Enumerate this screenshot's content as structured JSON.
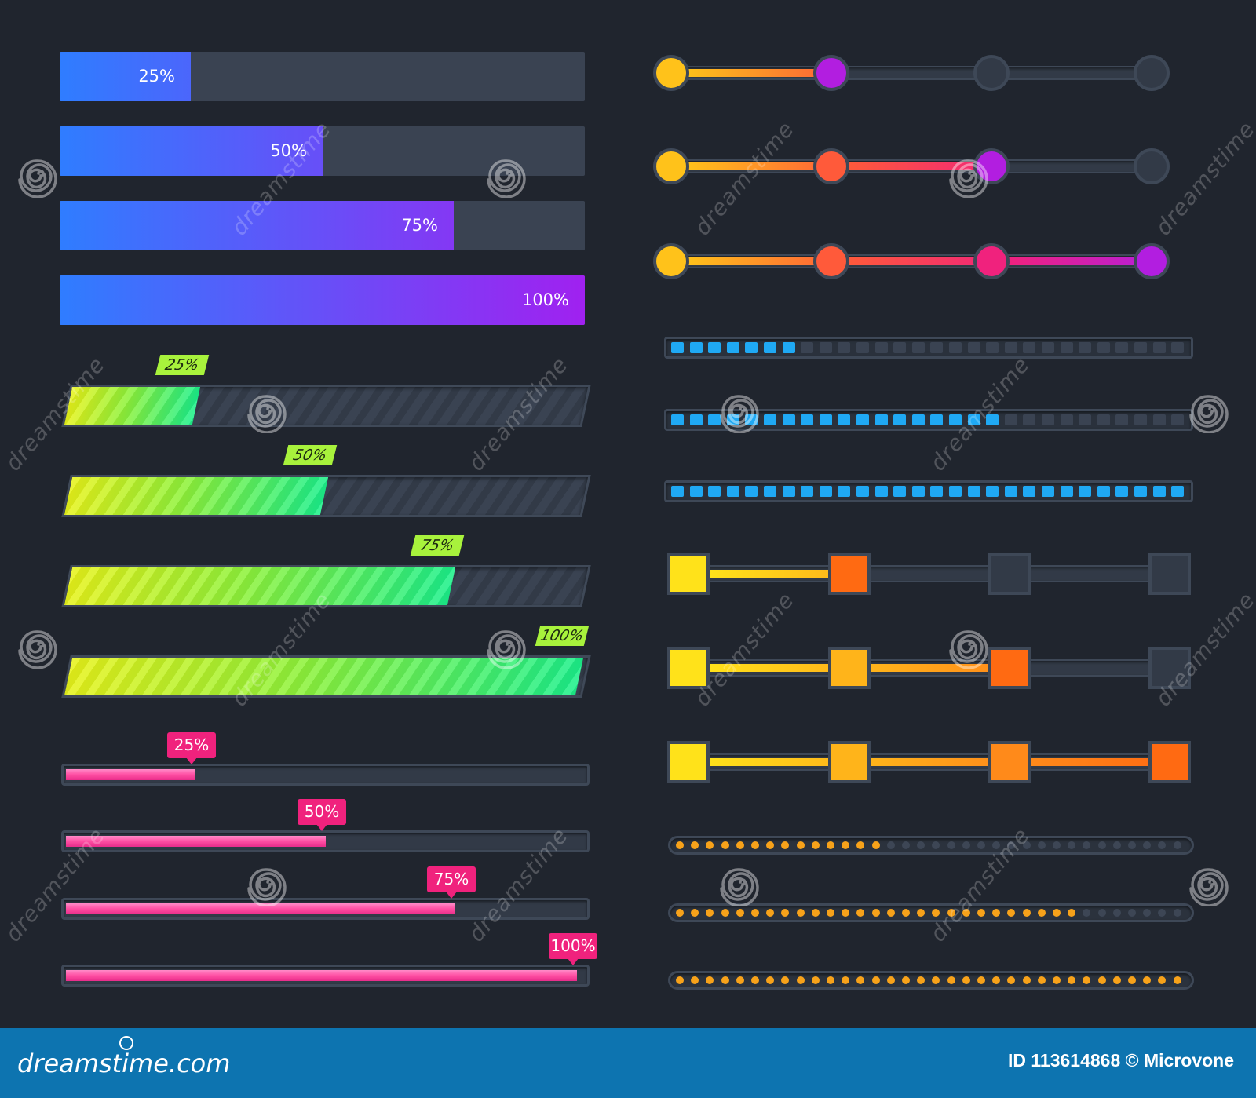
{
  "gradient_bars": {
    "items": [
      {
        "label": "25%",
        "progress": 0.25
      },
      {
        "label": "50%",
        "progress": 0.5
      },
      {
        "label": "75%",
        "progress": 0.75
      },
      {
        "label": "100%",
        "progress": 1.0
      }
    ],
    "colors": {
      "start": "#2f7dff",
      "end": "#a021f0",
      "track": "#3a4352"
    }
  },
  "striped_bars": {
    "items": [
      {
        "label": "25%",
        "progress": 0.25
      },
      {
        "label": "50%",
        "progress": 0.5
      },
      {
        "label": "75%",
        "progress": 0.75
      },
      {
        "label": "100%",
        "progress": 1.0
      }
    ],
    "colors": {
      "start": "#e7f31a",
      "end": "#1cf08a",
      "tag": "#a8f23c"
    }
  },
  "pink_bars": {
    "items": [
      {
        "label": "25%",
        "progress": 0.25
      },
      {
        "label": "50%",
        "progress": 0.5
      },
      {
        "label": "75%",
        "progress": 0.75
      },
      {
        "label": "100%",
        "progress": 1.0
      }
    ],
    "colors": {
      "fill": "#ff4fa3",
      "tag": "#f0227d"
    }
  },
  "circle_steps": {
    "steps_total": 4,
    "items": [
      {
        "completed_steps": 2
      },
      {
        "completed_steps": 3
      },
      {
        "completed_steps": 4
      }
    ],
    "colors": [
      "#ffc21a",
      "#ff5a3a",
      "#f0227d",
      "#b21ee0"
    ]
  },
  "segment_bars": {
    "segments_total": 28,
    "items": [
      {
        "filled_segments": 7
      },
      {
        "filled_segments": 18
      },
      {
        "filled_segments": 28
      }
    ],
    "colors": {
      "on": "#1fa9f4",
      "off": "#3a4352"
    }
  },
  "square_steps": {
    "steps_total": 4,
    "items": [
      {
        "completed_steps": 2
      },
      {
        "completed_steps": 3
      },
      {
        "completed_steps": 4
      }
    ],
    "colors": [
      "#ffe21a",
      "#ffb41a",
      "#ff8a1a",
      "#ff6a12"
    ]
  },
  "dot_bars": {
    "dots_total": 34,
    "items": [
      {
        "filled_dots": 14
      },
      {
        "filled_dots": 27
      },
      {
        "filled_dots": 34
      }
    ],
    "colors": {
      "on": "#f7a21a",
      "off": "#3d4655"
    }
  },
  "watermark": {
    "text": "dreamstime"
  },
  "footer": {
    "brand": "dreamstime.com",
    "id_text": "ID 113614868 © Microvone"
  }
}
